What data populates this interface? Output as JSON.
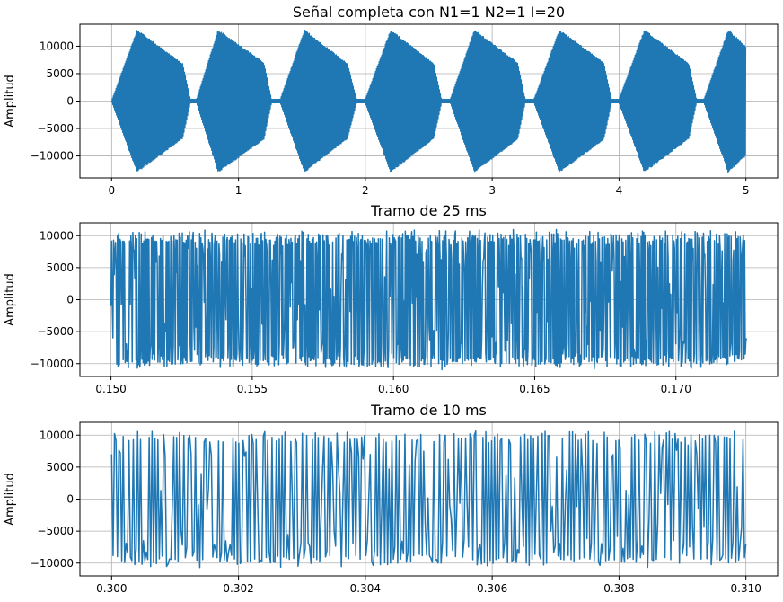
{
  "chart_data": [
    {
      "type": "line",
      "title": "Señal completa con N1=1 N2=1 I=20",
      "xlabel": "",
      "ylabel": "Amplitud",
      "xlim": [
        -0.25,
        5.25
      ],
      "ylim": [
        -14000,
        14000
      ],
      "xticks": [
        0,
        1,
        2,
        3,
        4,
        5
      ],
      "xtick_labels": [
        "0",
        "1",
        "2",
        "3",
        "4",
        "5"
      ],
      "yticks": [
        -10000,
        -5000,
        0,
        5000,
        10000
      ],
      "ytick_labels": [
        "−10000",
        "−5000",
        "0",
        "5000",
        "10000"
      ],
      "grid": true,
      "series": [
        {
          "color": "#1f77b4",
          "x": [
            0.0,
            0.2,
            0.56,
            0.62,
            0.67,
            0.84,
            1.2,
            1.26,
            1.33,
            1.52,
            1.86,
            1.93,
            2.0,
            2.2,
            2.54,
            2.6,
            2.67,
            2.86,
            3.2,
            3.26,
            3.33,
            3.53,
            3.88,
            3.94,
            4.0,
            4.2,
            4.55,
            4.61,
            4.67,
            4.86,
            5.0
          ],
          "envelope": [
            0,
            13000,
            6800,
            300,
            300,
            13000,
            7000,
            300,
            300,
            13000,
            6800,
            300,
            300,
            13000,
            6800,
            300,
            300,
            13000,
            7000,
            300,
            300,
            13000,
            7000,
            300,
            300,
            13000,
            6800,
            300,
            300,
            13000,
            10000
          ]
        }
      ]
    },
    {
      "type": "line",
      "title": "Tramo de 25 ms",
      "xlabel": "",
      "ylabel": "Amplitud",
      "xlim": [
        0.1489,
        0.1736
      ],
      "ylim": [
        -12000,
        12000
      ],
      "xticks": [
        0.15,
        0.155,
        0.16,
        0.165,
        0.17
      ],
      "xtick_labels": [
        "0.150",
        "0.155",
        "0.160",
        "0.165",
        "0.170"
      ],
      "yticks": [
        -10000,
        -5000,
        0,
        5000,
        10000
      ],
      "ytick_labels": [
        "−10000",
        "−5000",
        "0",
        "5000",
        "10000"
      ],
      "grid": true,
      "series": [
        {
          "color": "#1f77b4",
          "x_start": 0.15,
          "x_end": 0.1725,
          "samples": 990,
          "amplitude": [
            9800,
            11000
          ],
          "y_first": -1000
        }
      ]
    },
    {
      "type": "line",
      "title": "Tramo de 10 ms",
      "xlabel": "",
      "ylabel": "Amplitud",
      "xlim": [
        0.2995,
        0.3105
      ],
      "ylim": [
        -12000,
        12000
      ],
      "xticks": [
        0.3,
        0.302,
        0.304,
        0.306,
        0.308,
        0.31
      ],
      "xtick_labels": [
        "0.300",
        "0.302",
        "0.304",
        "0.306",
        "0.308",
        "0.310"
      ],
      "yticks": [
        -10000,
        -5000,
        0,
        5000,
        10000
      ],
      "ytick_labels": [
        "−10000",
        "−5000",
        "0",
        "5000",
        "10000"
      ],
      "grid": true,
      "series": [
        {
          "color": "#1f77b4",
          "x_start": 0.3,
          "x_end": 0.31,
          "samples": 440,
          "amplitude": [
            10000,
            10800
          ],
          "y_first": 7000
        }
      ]
    }
  ]
}
